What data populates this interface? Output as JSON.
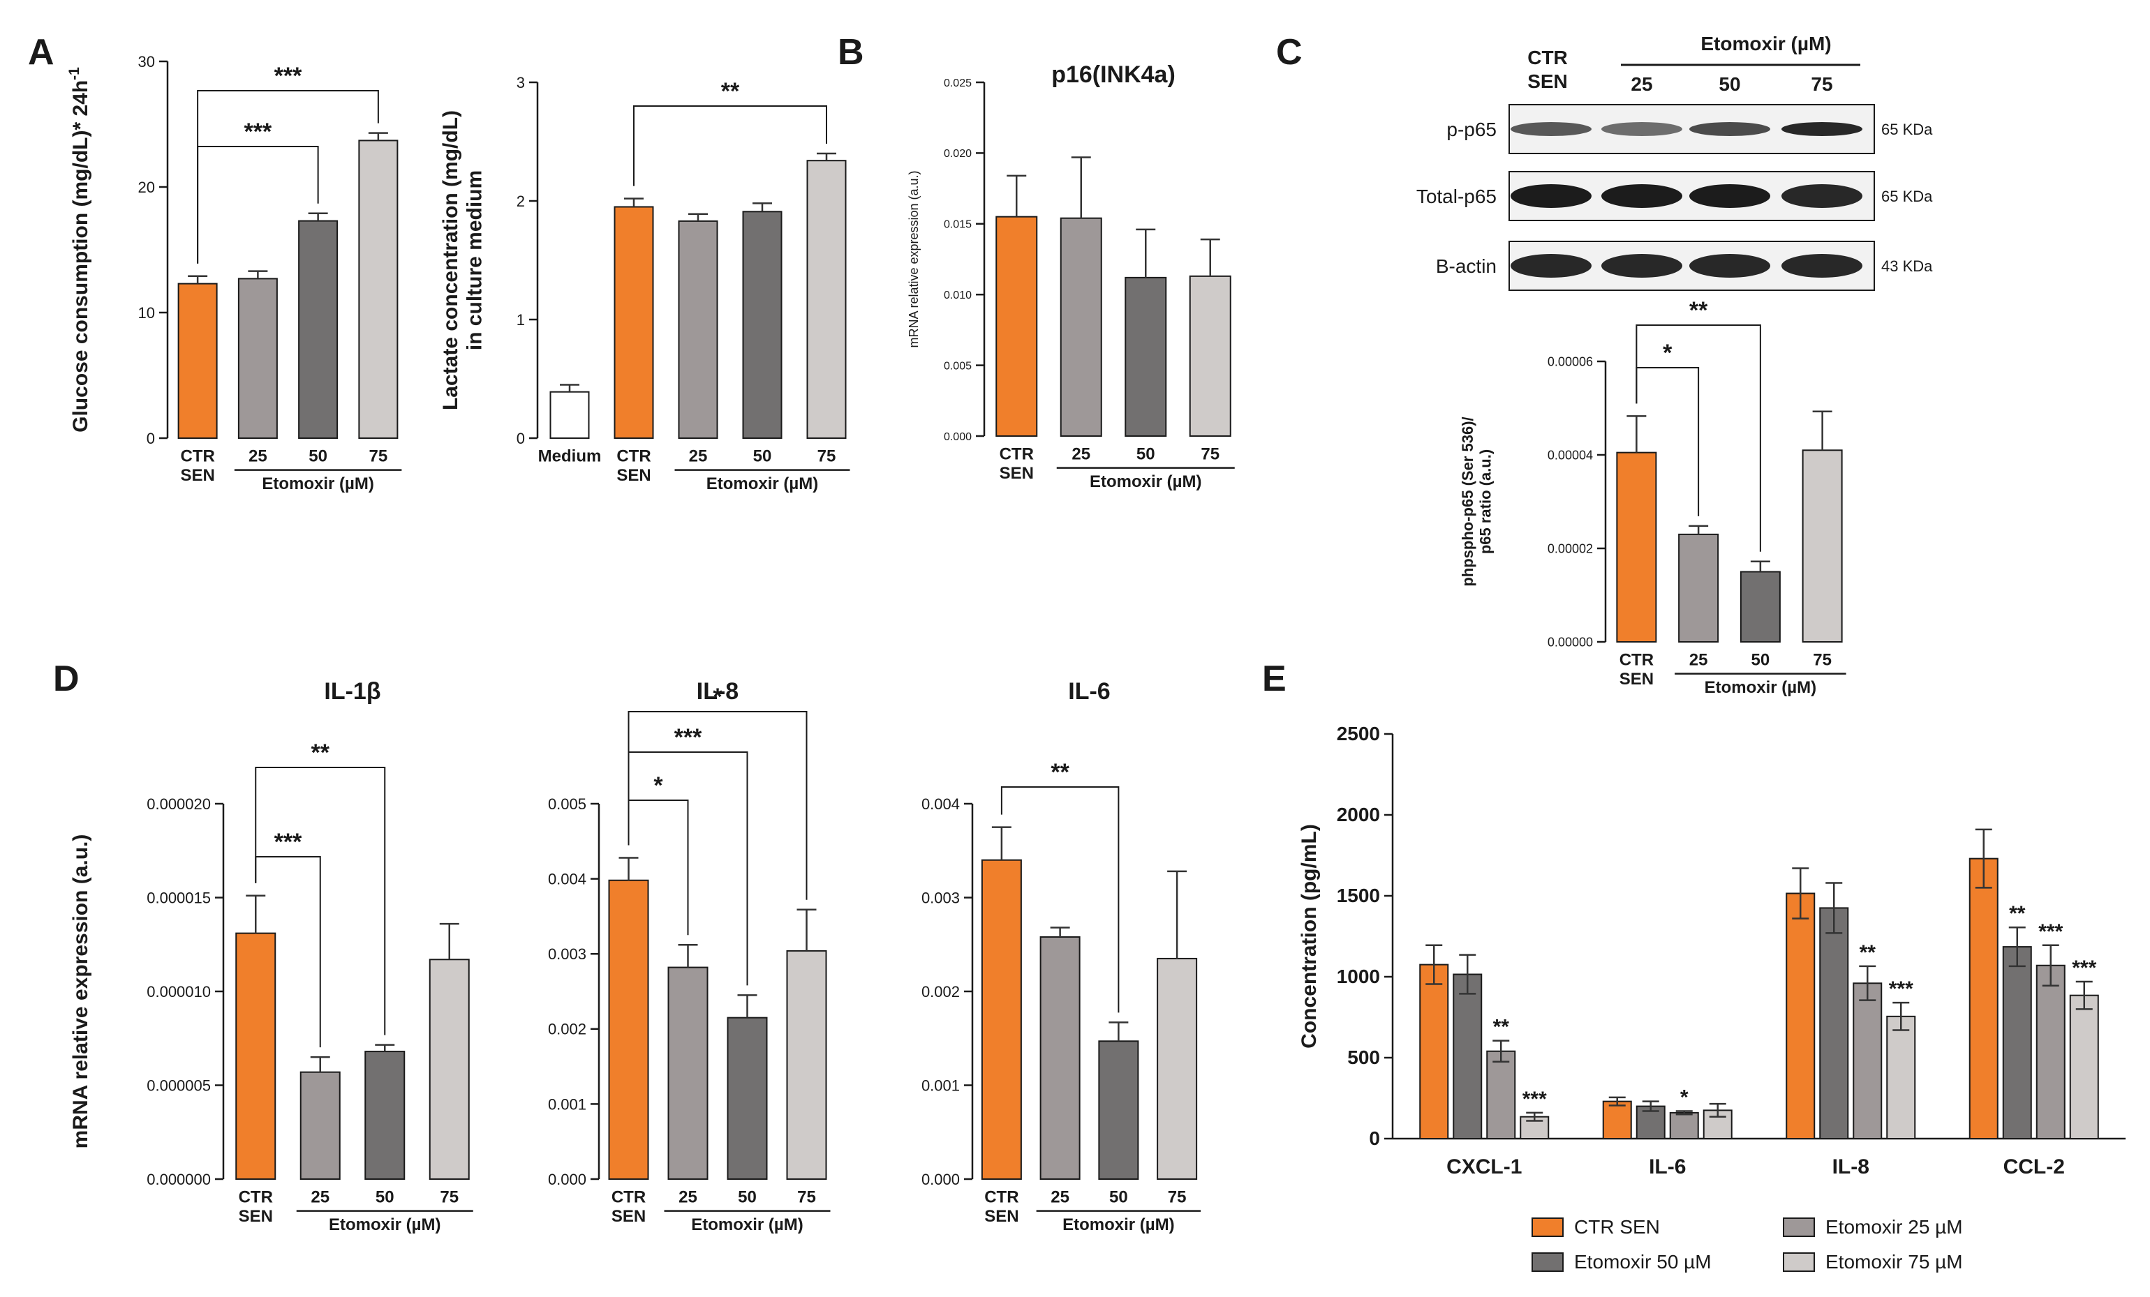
{
  "colors": {
    "orange": "#F07F2B",
    "g25": "#9E9898",
    "g50": "#727070",
    "g75": "#CFCBC9",
    "medium": "#FFFFFF",
    "ink": "#1A1A1A",
    "err": "#333333",
    "blot_bg": "#F2F2F2",
    "blot_band": "#1C1C1C"
  },
  "panel_labels": [
    "A",
    "B",
    "C",
    "D",
    "E"
  ],
  "chart_data": [
    {
      "id": "a1",
      "type": "bar",
      "ylabel": "Glucose consumption (mg/dL)* 24h-1",
      "ylim": [
        0,
        30
      ],
      "yticks": [
        "0",
        "10",
        "20",
        "30"
      ],
      "categories": [
        "CTR SEN",
        "25",
        "50",
        "75"
      ],
      "values": [
        12.3,
        12.7,
        17.3,
        23.7
      ],
      "errors": [
        0.6,
        0.6,
        0.6,
        0.6
      ],
      "colors": [
        "orange",
        "g25",
        "g50",
        "g75"
      ],
      "xgroup": "Etomoxir (µM)",
      "sig": [
        {
          "from": 0,
          "to": 2,
          "text": "***"
        },
        {
          "from": 0,
          "to": 3,
          "text": "***"
        }
      ]
    },
    {
      "id": "a2",
      "type": "bar",
      "ylabel": "Lactate concentration (mg/dL) in culture medium",
      "ylim": [
        0,
        3
      ],
      "yticks": [
        "0",
        "1",
        "2",
        "3"
      ],
      "categories": [
        "Medium",
        "CTR SEN",
        "25",
        "50",
        "75"
      ],
      "values": [
        0.39,
        1.95,
        1.83,
        1.91,
        2.34
      ],
      "errors": [
        0.06,
        0.07,
        0.06,
        0.07,
        0.06
      ],
      "colors": [
        "medium",
        "orange",
        "g25",
        "g50",
        "g75"
      ],
      "xgroup": "Etomoxir (µM)",
      "sig": [
        {
          "from": 1,
          "to": 4,
          "text": "**"
        }
      ]
    },
    {
      "id": "b",
      "type": "bar",
      "title": "p16(INK4a)",
      "ylabel": "mRNA relative expression (a.u.)",
      "ylim": [
        0,
        0.025
      ],
      "yticks": [
        "0.000",
        "0.005",
        "0.010",
        "0.015",
        "0.020",
        "0.025"
      ],
      "categories": [
        "CTR SEN",
        "25",
        "50",
        "75"
      ],
      "values": [
        0.0155,
        0.0154,
        0.0112,
        0.0113
      ],
      "errors": [
        0.0029,
        0.0043,
        0.0034,
        0.0026
      ],
      "colors": [
        "orange",
        "g25",
        "g50",
        "g75"
      ],
      "xgroup": "Etomoxir (µM)",
      "sig": []
    },
    {
      "id": "c",
      "type": "bar",
      "ylabel": "phpspho-p65 (Ser 536)/ p65 ratio (a.u.)",
      "ylim": [
        0,
        6e-05
      ],
      "yticks": [
        "0.00000",
        "0.00002",
        "0.00004",
        "0.00006"
      ],
      "categories": [
        "CTR SEN",
        "25",
        "50",
        "75"
      ],
      "values": [
        4.05e-05,
        2.3e-05,
        1.5e-05,
        4.1e-05
      ],
      "errors": [
        7.8e-06,
        1.8e-06,
        2.2e-06,
        8.3e-06
      ],
      "colors": [
        "orange",
        "g25",
        "g50",
        "g75"
      ],
      "xgroup": "Etomoxir (µM)",
      "sig": [
        {
          "from": 0,
          "to": 1,
          "text": "*"
        },
        {
          "from": 0,
          "to": 2,
          "text": "**"
        }
      ]
    },
    {
      "id": "d1",
      "type": "bar",
      "title": "IL-1β",
      "ylabel": "mRNA relative expression (a.u.)",
      "ylim": [
        0,
        2e-05
      ],
      "yticks": [
        "0.000000",
        "0.000005",
        "0.000010",
        "0.000015",
        "0.000020"
      ],
      "categories": [
        "CTR SEN",
        "25",
        "50",
        "75"
      ],
      "values": [
        1.31e-05,
        5.7e-06,
        6.8e-06,
        1.17e-05
      ],
      "errors": [
        2e-06,
        8e-07,
        3.5e-07,
        1.9e-06
      ],
      "colors": [
        "orange",
        "g25",
        "g50",
        "g75"
      ],
      "xgroup": "Etomoxir (µM)",
      "sig": [
        {
          "from": 0,
          "to": 1,
          "text": "***"
        },
        {
          "from": 0,
          "to": 2,
          "text": "**"
        }
      ]
    },
    {
      "id": "d2",
      "type": "bar",
      "title": "IL-8",
      "ylabel": "",
      "ylim": [
        0,
        0.005
      ],
      "yticks": [
        "0.000",
        "0.001",
        "0.002",
        "0.003",
        "0.004",
        "0.005"
      ],
      "categories": [
        "CTR SEN",
        "25",
        "50",
        "75"
      ],
      "values": [
        0.00398,
        0.00282,
        0.00215,
        0.00304
      ],
      "errors": [
        0.0003,
        0.0003,
        0.0003,
        0.00055
      ],
      "colors": [
        "orange",
        "g25",
        "g50",
        "g75"
      ],
      "xgroup": "Etomoxir (µM)",
      "sig": [
        {
          "from": 0,
          "to": 1,
          "text": "*"
        },
        {
          "from": 0,
          "to": 2,
          "text": "***"
        },
        {
          "from": 0,
          "to": 3,
          "text": "*"
        }
      ]
    },
    {
      "id": "d3",
      "type": "bar",
      "title": "IL-6",
      "ylabel": "",
      "ylim": [
        0,
        0.004
      ],
      "yticks": [
        "0.000",
        "0.001",
        "0.002",
        "0.003",
        "0.004"
      ],
      "categories": [
        "CTR SEN",
        "25",
        "50",
        "75"
      ],
      "values": [
        0.0034,
        0.00258,
        0.00147,
        0.00235
      ],
      "errors": [
        0.00035,
        0.0001,
        0.0002,
        0.00093
      ],
      "colors": [
        "orange",
        "g25",
        "g50",
        "g75"
      ],
      "xgroup": "Etomoxir (µM)",
      "sig": [
        {
          "from": 0,
          "to": 2,
          "text": "**"
        }
      ]
    },
    {
      "id": "e",
      "type": "bar",
      "ylabel": "Concentration (pg/mL)",
      "ylim": [
        0,
        2500
      ],
      "yticks": [
        "0",
        "500",
        "1000",
        "1500",
        "2000",
        "2500"
      ],
      "categories": [
        "CXCL-1",
        "IL-6",
        "IL-8",
        "CCL-2"
      ],
      "series": [
        {
          "name": "CTR SEN",
          "color": "orange",
          "values": [
            1075,
            230,
            1515,
            1730
          ],
          "errors": [
            120,
            25,
            155,
            180
          ],
          "stars": [
            "",
            "",
            "",
            ""
          ]
        },
        {
          "name": "Etomoxir 50 µM",
          "color": "g50",
          "values": [
            1015,
            200,
            1425,
            1185
          ],
          "errors": [
            120,
            30,
            155,
            120
          ],
          "stars": [
            "",
            "",
            "",
            "**"
          ]
        },
        {
          "name": "Etomoxir 25 µM",
          "color": "g25",
          "values": [
            540,
            160,
            960,
            1070
          ],
          "errors": [
            65,
            10,
            105,
            125
          ],
          "stars": [
            "**",
            "*",
            "**",
            "***"
          ]
        },
        {
          "name": "Etomoxir 75 µM",
          "color": "g75",
          "values": [
            135,
            175,
            755,
            885
          ],
          "errors": [
            25,
            40,
            85,
            85
          ],
          "stars": [
            "***",
            "",
            "***",
            "***"
          ]
        }
      ],
      "legend": [
        "CTR SEN",
        "Etomoxir 25 µM",
        "Etomoxir 50 µM",
        "Etomoxir 75 µM"
      ]
    }
  ],
  "blot": {
    "header_left": "CTR",
    "header_left2": "SEN",
    "header_group": "Etomoxir (µM)",
    "lanes": [
      "25",
      "50",
      "75"
    ],
    "rows": [
      {
        "label": "p-p65",
        "size": "65 KDa",
        "intensity": [
          0.72,
          0.62,
          0.78,
          0.95
        ]
      },
      {
        "label": "Total-p65",
        "size": "65 KDa",
        "intensity": [
          1.0,
          1.0,
          1.0,
          0.95
        ]
      },
      {
        "label": "B-actin",
        "size": "43 KDa",
        "intensity": [
          0.95,
          0.95,
          0.95,
          0.95
        ]
      }
    ]
  }
}
